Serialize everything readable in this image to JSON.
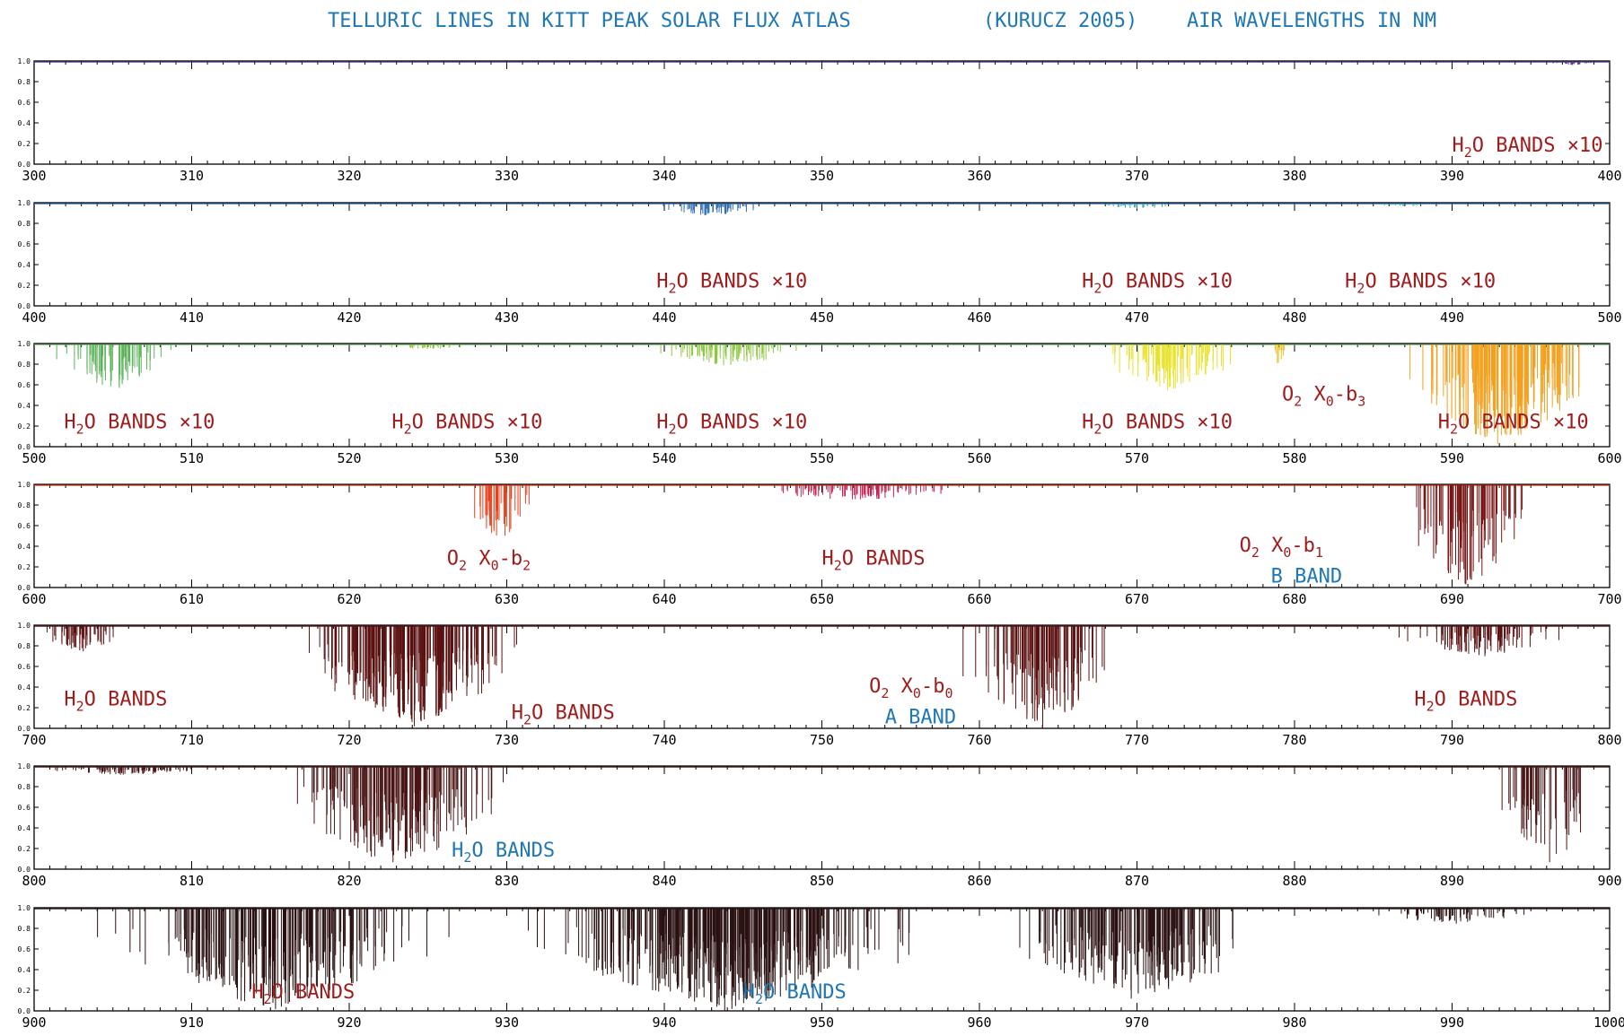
{
  "title": {
    "part1": "TELLURIC LINES IN KITT PEAK SOLAR FLUX ATLAS",
    "part2": "(KURUCZ 2005)",
    "part3": "AIR WAVELENGTHS IN NM"
  },
  "colors": {
    "title": "#1f77b4",
    "red_label": "#a01c1c",
    "blue_label": "#1f77b4"
  },
  "chart_data": [
    {
      "type": "line",
      "xlim": [
        300,
        400
      ],
      "ylim": [
        0.0,
        1.0
      ],
      "xticks": [
        300,
        310,
        320,
        330,
        340,
        350,
        360,
        370,
        380,
        390,
        400
      ],
      "yticks": [
        "1.0",
        "0.8",
        "0.6",
        "0.4",
        "0.2",
        "0.0"
      ],
      "features": [
        {
          "center": 397.5,
          "width": 2.5,
          "depth": 0.03,
          "count": 25,
          "color": "#5b3b9a"
        }
      ],
      "annotations": [
        {
          "base": "H",
          "sub": "2",
          "rest": "O BANDS ×10",
          "sub2": "",
          "x": 390,
          "y": 0.12,
          "color": "red"
        }
      ]
    },
    {
      "type": "line",
      "xlim": [
        400,
        500
      ],
      "ylim": [
        0.0,
        1.0
      ],
      "xticks": [
        400,
        410,
        420,
        430,
        440,
        450,
        460,
        470,
        480,
        490,
        500
      ],
      "yticks": [
        "1.0",
        "0.8",
        "0.6",
        "0.4",
        "0.2",
        "0.0"
      ],
      "features": [
        {
          "center": 443,
          "width": 4,
          "depth": 0.12,
          "count": 60,
          "color": "#2f6db3"
        },
        {
          "center": 470,
          "width": 3,
          "depth": 0.05,
          "count": 30,
          "color": "#2aa9c9"
        },
        {
          "center": 487,
          "width": 2,
          "depth": 0.03,
          "count": 20,
          "color": "#3fc1a9"
        }
      ],
      "annotations": [
        {
          "base": "H",
          "sub": "2",
          "rest": "O BANDS ×10",
          "sub2": "",
          "x": 439.5,
          "y": 0.18,
          "color": "red"
        },
        {
          "base": "H",
          "sub": "2",
          "rest": "O BANDS ×10",
          "sub2": "",
          "x": 466.5,
          "y": 0.18,
          "color": "red"
        },
        {
          "base": "H",
          "sub": "2",
          "rest": "O BANDS ×10",
          "sub2": "",
          "x": 483.2,
          "y": 0.18,
          "color": "red"
        }
      ]
    },
    {
      "type": "line",
      "xlim": [
        500,
        600
      ],
      "ylim": [
        0.0,
        1.0
      ],
      "xticks": [
        500,
        510,
        520,
        530,
        540,
        550,
        560,
        570,
        580,
        590,
        600
      ],
      "yticks": [
        "1.0",
        "0.8",
        "0.6",
        "0.4",
        "0.2",
        "0.0"
      ],
      "features": [
        {
          "center": 505,
          "width": 4,
          "depth": 0.45,
          "count": 80,
          "color": "#5db35b"
        },
        {
          "center": 525,
          "width": 3,
          "depth": 0.05,
          "count": 30,
          "color": "#8cc63f"
        },
        {
          "center": 544,
          "width": 5,
          "depth": 0.22,
          "count": 80,
          "color": "#8cc63f"
        },
        {
          "center": 572,
          "width": 5,
          "depth": 0.45,
          "count": 100,
          "color": "#e8e22a"
        },
        {
          "center": 579,
          "width": 1,
          "depth": 0.2,
          "count": 10,
          "color": "#e8c22a"
        },
        {
          "center": 593,
          "width": 7,
          "depth": 1.0,
          "count": 200,
          "color": "#f2a11f"
        }
      ],
      "annotations": [
        {
          "base": "H",
          "sub": "2",
          "rest": "O BANDS ×10",
          "sub2": "",
          "x": 501.9,
          "y": 0.18,
          "color": "red"
        },
        {
          "base": "H",
          "sub": "2",
          "rest": "O BANDS ×10",
          "sub2": "",
          "x": 522.7,
          "y": 0.18,
          "color": "red"
        },
        {
          "base": "H",
          "sub": "2",
          "rest": "O BANDS ×10",
          "sub2": "",
          "x": 539.5,
          "y": 0.18,
          "color": "red"
        },
        {
          "base": "H",
          "sub": "2",
          "rest": "O BANDS ×10",
          "sub2": "",
          "x": 566.5,
          "y": 0.18,
          "color": "red"
        },
        {
          "base": "O",
          "sub": "2",
          "rest": " X",
          "sub2": "0",
          "rest2": "-b",
          "sub3": "3",
          "x": 579.2,
          "y": 0.45,
          "color": "red"
        },
        {
          "base": "H",
          "sub": "2",
          "rest": "O BANDS ×10",
          "sub2": "",
          "x": 589.1,
          "y": 0.18,
          "color": "red"
        }
      ]
    },
    {
      "type": "line",
      "xlim": [
        600,
        700
      ],
      "ylim": [
        0.0,
        1.0
      ],
      "xticks": [
        600,
        610,
        620,
        630,
        640,
        650,
        660,
        670,
        680,
        690,
        700
      ],
      "yticks": [
        "1.0",
        "0.8",
        "0.6",
        "0.4",
        "0.2",
        "0.0"
      ],
      "features": [
        {
          "center": 629.5,
          "width": 2.5,
          "depth": 0.55,
          "count": 40,
          "color": "#e8401c"
        },
        {
          "center": 652,
          "width": 8,
          "depth": 0.15,
          "count": 90,
          "color": "#c21e4d"
        },
        {
          "center": 691,
          "width": 5,
          "depth": 1.0,
          "count": 90,
          "color": "#7a1414"
        }
      ],
      "annotations": [
        {
          "base": "O",
          "sub": "2",
          "rest": " X",
          "sub2": "0",
          "rest2": "-b",
          "sub3": "2",
          "x": 626.2,
          "y": 0.22,
          "color": "red"
        },
        {
          "base": "H",
          "sub": "2",
          "rest": "O BANDS",
          "sub2": "",
          "x": 650,
          "y": 0.22,
          "color": "red"
        },
        {
          "base": "O",
          "sub": "2",
          "rest": " X",
          "sub2": "0",
          "rest2": "-b",
          "sub3": "1",
          "x": 676.5,
          "y": 0.35,
          "color": "red"
        },
        {
          "plain": "B BAND",
          "x": 678.5,
          "y": 0.05,
          "color": "blue"
        }
      ]
    },
    {
      "type": "line",
      "xlim": [
        700,
        800
      ],
      "ylim": [
        0.0,
        1.0
      ],
      "xticks": [
        700,
        710,
        720,
        730,
        740,
        750,
        760,
        770,
        780,
        790,
        800
      ],
      "yticks": [
        "1.0",
        "0.8",
        "0.6",
        "0.4",
        "0.2",
        "0.0"
      ],
      "features": [
        {
          "center": 703,
          "width": 3,
          "depth": 0.25,
          "count": 50,
          "color": "#5a1010"
        },
        {
          "center": 724,
          "width": 8,
          "depth": 1.0,
          "count": 260,
          "color": "#5a1010"
        },
        {
          "center": 764,
          "width": 6,
          "depth": 1.0,
          "count": 120,
          "color": "#5a1010"
        },
        {
          "center": 792,
          "width": 6,
          "depth": 0.3,
          "count": 100,
          "color": "#5a1010"
        }
      ],
      "annotations": [
        {
          "base": "H",
          "sub": "2",
          "rest": "O BANDS",
          "sub2": "",
          "x": 701.9,
          "y": 0.22,
          "color": "red"
        },
        {
          "base": "H",
          "sub": "2",
          "rest": "O BANDS",
          "sub2": "",
          "x": 730.3,
          "y": 0.09,
          "color": "red"
        },
        {
          "base": "O",
          "sub": "2",
          "rest": " X",
          "sub2": "0",
          "rest2": "-b",
          "sub3": "0",
          "x": 753,
          "y": 0.35,
          "color": "red"
        },
        {
          "plain": "A BAND",
          "x": 754,
          "y": 0.05,
          "color": "blue"
        },
        {
          "base": "H",
          "sub": "2",
          "rest": "O BANDS",
          "sub2": "",
          "x": 787.6,
          "y": 0.22,
          "color": "red"
        }
      ]
    },
    {
      "type": "line",
      "xlim": [
        800,
        900
      ],
      "ylim": [
        0.0,
        1.0
      ],
      "xticks": [
        800,
        810,
        820,
        830,
        840,
        850,
        860,
        870,
        880,
        890,
        900
      ],
      "yticks": [
        "1.0",
        "0.8",
        "0.6",
        "0.4",
        "0.2",
        "0.0"
      ],
      "features": [
        {
          "center": 806,
          "width": 6,
          "depth": 0.08,
          "count": 90,
          "color": "#4a1515"
        },
        {
          "center": 823,
          "width": 8,
          "depth": 1.0,
          "count": 200,
          "color": "#4a1515"
        },
        {
          "center": 896,
          "width": 4,
          "depth": 1.0,
          "count": 60,
          "color": "#4a1515"
        }
      ],
      "annotations": [
        {
          "base": "H",
          "sub": "2",
          "rest": "O BANDS",
          "sub2": "",
          "x": 826.5,
          "y": 0.12,
          "color": "blue"
        }
      ]
    },
    {
      "type": "line",
      "xlim": [
        900,
        1000
      ],
      "ylim": [
        0.0,
        1.0
      ],
      "xticks": [
        900,
        910,
        920,
        930,
        940,
        950,
        960,
        970,
        980,
        990,
        1000
      ],
      "yticks": [
        "1.0",
        "0.8",
        "0.6",
        "0.4",
        "0.2",
        "0.0"
      ],
      "features": [
        {
          "center": 915,
          "width": 12,
          "depth": 1.0,
          "count": 250,
          "color": "#2a1010"
        },
        {
          "center": 944,
          "width": 14,
          "depth": 1.0,
          "count": 420,
          "color": "#2a1010"
        },
        {
          "center": 970,
          "width": 10,
          "depth": 0.9,
          "count": 200,
          "color": "#2a1010"
        },
        {
          "center": 990,
          "width": 6,
          "depth": 0.15,
          "count": 60,
          "color": "#2a1010"
        }
      ],
      "annotations": [
        {
          "base": "H",
          "sub": "2",
          "rest": "O BANDS",
          "sub2": "",
          "x": 913.8,
          "y": 0.12,
          "color": "red"
        },
        {
          "base": "H",
          "sub": "2",
          "rest": "O BANDS",
          "sub2": "",
          "x": 945,
          "y": 0.12,
          "color": "blue"
        }
      ]
    }
  ]
}
